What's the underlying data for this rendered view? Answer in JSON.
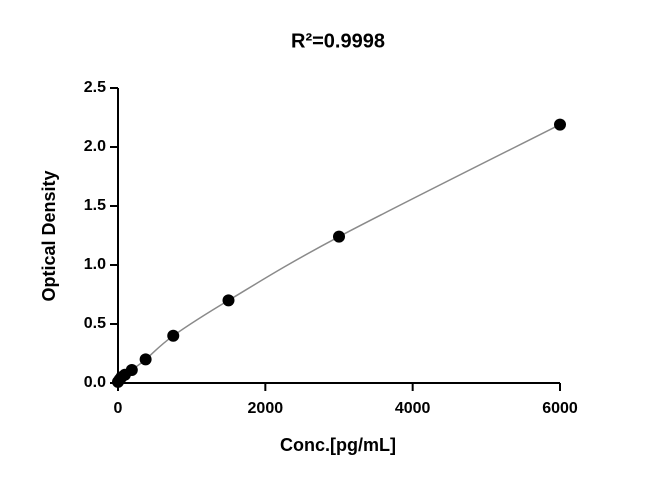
{
  "chart_data": {
    "type": "scatter",
    "title": "R²=0.9998",
    "x_label": "Conc.[pg/mL]",
    "y_label": "Optical Density",
    "x": [
      0,
      23.4,
      46.9,
      93.8,
      187.5,
      375,
      750,
      1500,
      3000,
      6000
    ],
    "values": [
      0.01,
      0.03,
      0.05,
      0.07,
      0.11,
      0.2,
      0.4,
      0.7,
      1.24,
      2.19
    ],
    "color": "#000000",
    "xlim": [
      0,
      6000
    ],
    "xticks": [
      0,
      2000,
      4000,
      6000
    ],
    "ylim": [
      0,
      2.5
    ],
    "yticks": [
      {
        "value": 0,
        "label": "0.0"
      },
      0.5,
      {
        "value": 1,
        "label": "1.0"
      },
      1.5,
      {
        "value": 2,
        "label": "2.0"
      },
      2.5
    ]
  }
}
